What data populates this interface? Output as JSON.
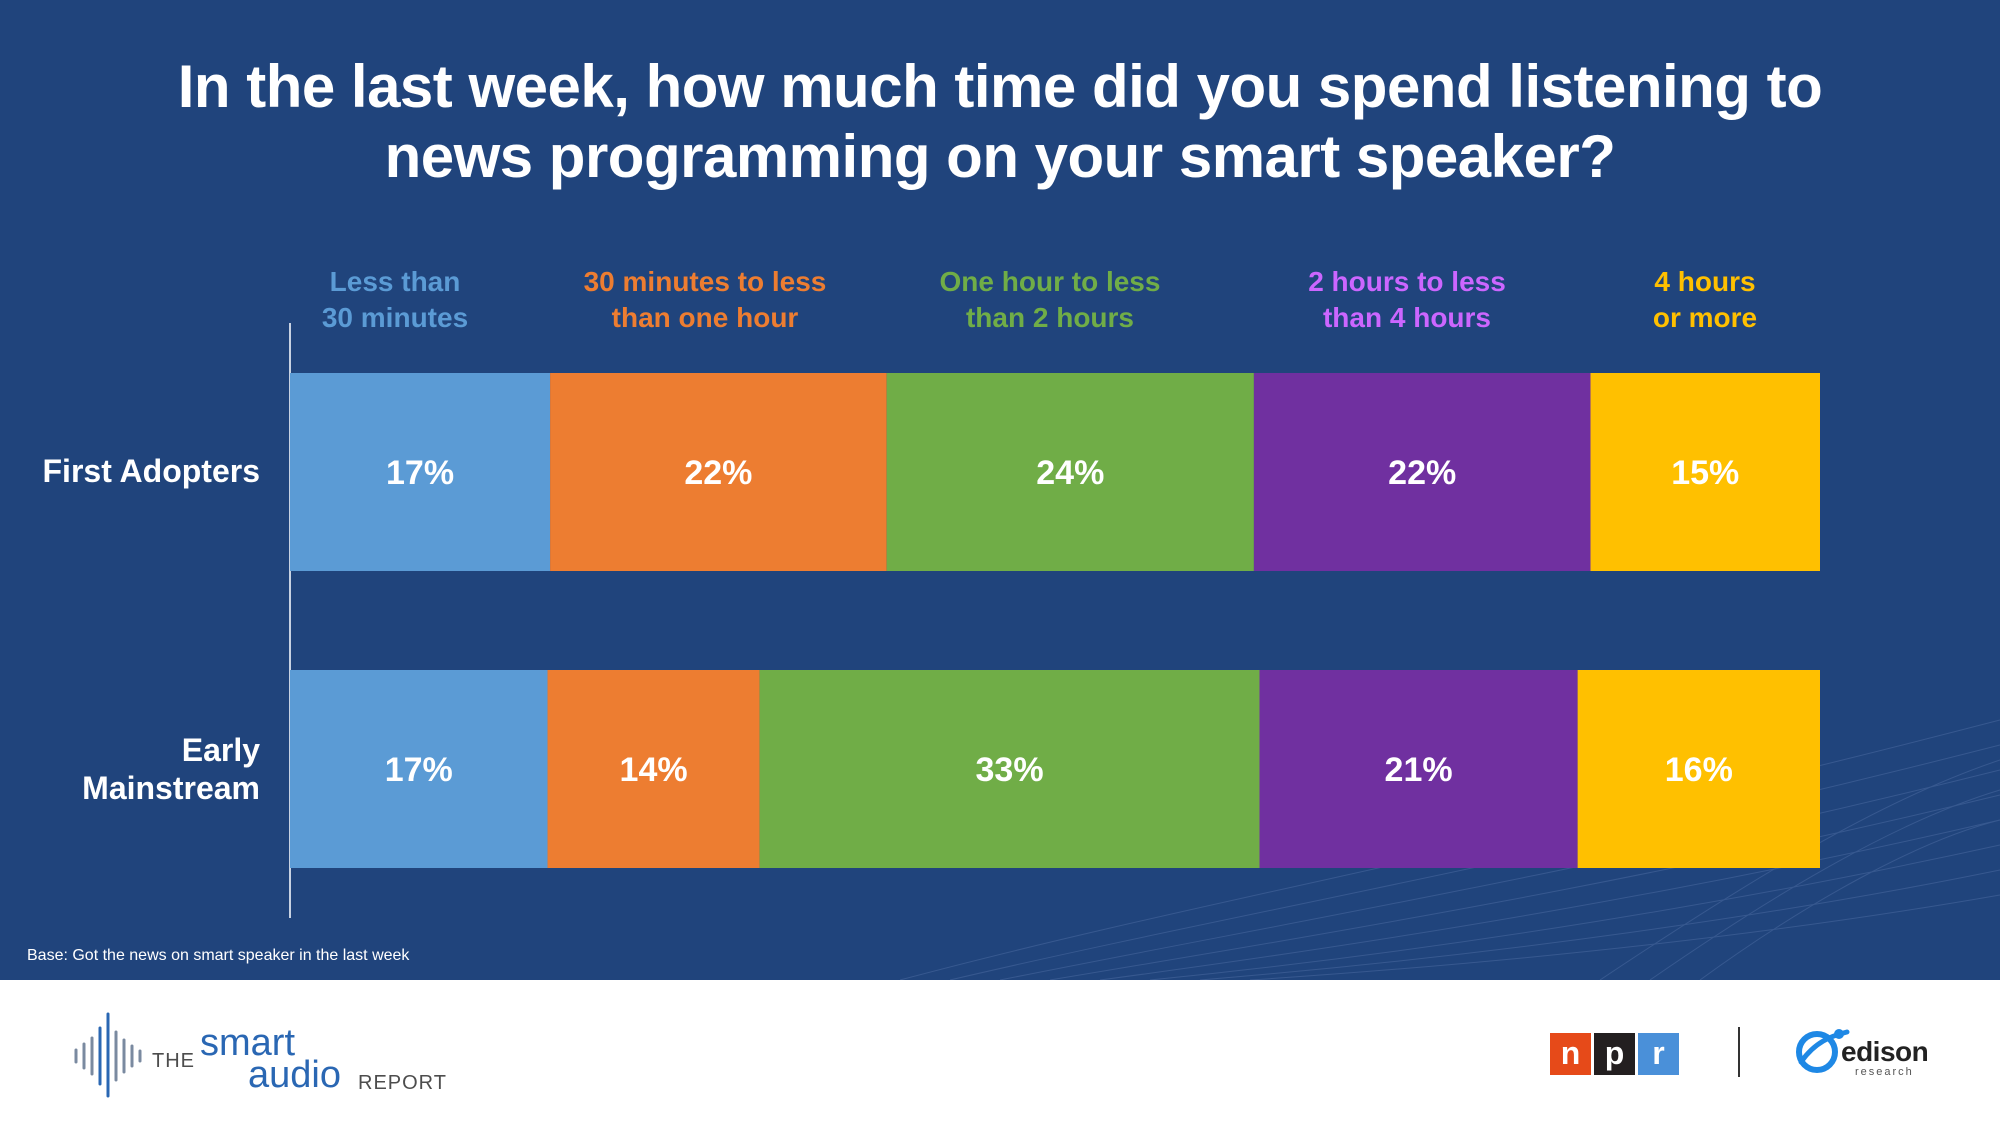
{
  "title": "In the last week, how much time did you spend listening to news programming on your smart speaker?",
  "chart_data": {
    "type": "bar",
    "orientation": "horizontal",
    "stacked": true,
    "normalized": true,
    "categories": [
      "First Adopters",
      "Early Mainstream"
    ],
    "category_display": [
      [
        "First Adopters"
      ],
      [
        "Early",
        "Mainstream"
      ]
    ],
    "series": [
      {
        "name": "Less than 30 minutes",
        "label_lines": [
          "Less than",
          "30 minutes"
        ],
        "color": "#5b9bd5",
        "label_color": "#5b9bd5",
        "values": [
          17,
          17
        ]
      },
      {
        "name": "30 minutes to less than one hour",
        "label_lines": [
          "30 minutes to less",
          "than one hour"
        ],
        "color": "#ed7d31",
        "label_color": "#ed7d31",
        "values": [
          22,
          14
        ]
      },
      {
        "name": "One hour to less than 2 hours",
        "label_lines": [
          "One hour to less",
          "than 2 hours"
        ],
        "color": "#70ad47",
        "label_color": "#70ad47",
        "values": [
          24,
          33
        ]
      },
      {
        "name": "2 hours to less than 4 hours",
        "label_lines": [
          "2 hours to less",
          "than 4 hours"
        ],
        "color": "#7030a0",
        "label_color": "#cc66ff",
        "values": [
          22,
          21
        ]
      },
      {
        "name": "4 hours or more",
        "label_lines": [
          "4 hours",
          "or more"
        ],
        "color": "#ffc000",
        "label_color": "#ffc000",
        "values": [
          15,
          16
        ]
      }
    ],
    "data_labels": [
      [
        "17%",
        "22%",
        "24%",
        "22%",
        "15%"
      ],
      [
        "17%",
        "14%",
        "33%",
        "21%",
        "16%"
      ]
    ],
    "value_unit": "%",
    "legend_placement": "top"
  },
  "base_note": "Base: Got the news on smart speaker in the last week",
  "footer": {
    "report_logo": {
      "the": "THE",
      "smart": "smart",
      "audio": "audio",
      "report": "REPORT"
    },
    "npr_logo": {
      "letters": [
        "n",
        "p",
        "r"
      ],
      "colors": [
        "#e64a19",
        "#231f20",
        "#4a90d9"
      ]
    },
    "edison_logo": {
      "word": "edison",
      "sub": "research"
    }
  },
  "colors": {
    "background": "#20447c",
    "footer": "#ffffff"
  }
}
